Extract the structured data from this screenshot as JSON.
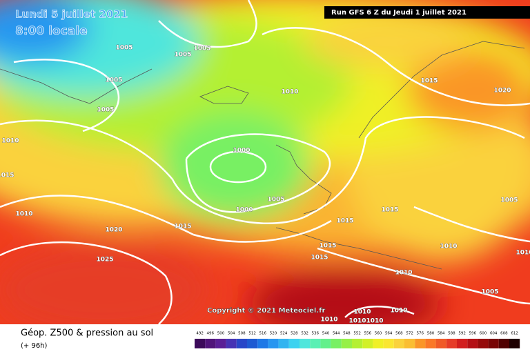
{
  "header": {
    "valid_date": "Lundi 5 juillet 2021",
    "valid_time": "8:00 locale",
    "run": "Run GFS 6 Z du Jeudi 1 juillet 2021"
  },
  "isobar_labels": [
    1005,
    1005,
    1005,
    1005,
    1005,
    1010,
    1010,
    1015,
    1010,
    1000,
    1000,
    1005,
    1020,
    1015,
    1025,
    1015,
    1015,
    1015,
    1015,
    1010,
    1010,
    1010,
    1005,
    1005,
    1015,
    1020,
    1010,
    1010,
    1010,
    1010,
    1010
  ],
  "copyright": "Copyright © 2021 Meteociel.fr",
  "footer": {
    "title": "Géop. Z500 & pression au sol",
    "lead": "(+ 96h)"
  },
  "scale": {
    "labels": [
      492,
      496,
      500,
      504,
      508,
      512,
      516,
      520,
      524,
      528,
      532,
      536,
      540,
      544,
      548,
      552,
      556,
      560,
      564,
      568,
      572,
      576,
      580,
      584,
      588,
      592,
      596,
      600,
      604,
      608,
      612
    ],
    "colors": [
      "#3c0a5a",
      "#50147a",
      "#5a1e96",
      "#4632b4",
      "#2846c8",
      "#1e5ad2",
      "#1e78e6",
      "#2896f0",
      "#32b4f0",
      "#3cd2f0",
      "#50e6dc",
      "#5af0b4",
      "#64f08c",
      "#78f064",
      "#96f046",
      "#b4f032",
      "#d2f028",
      "#f0f028",
      "#fae632",
      "#fad23c",
      "#fabe32",
      "#fa9628",
      "#fa7828",
      "#f05a28",
      "#e63c28",
      "#d21e1e",
      "#b40f14",
      "#960a0a",
      "#780505",
      "#500000",
      "#1e0000"
    ]
  }
}
